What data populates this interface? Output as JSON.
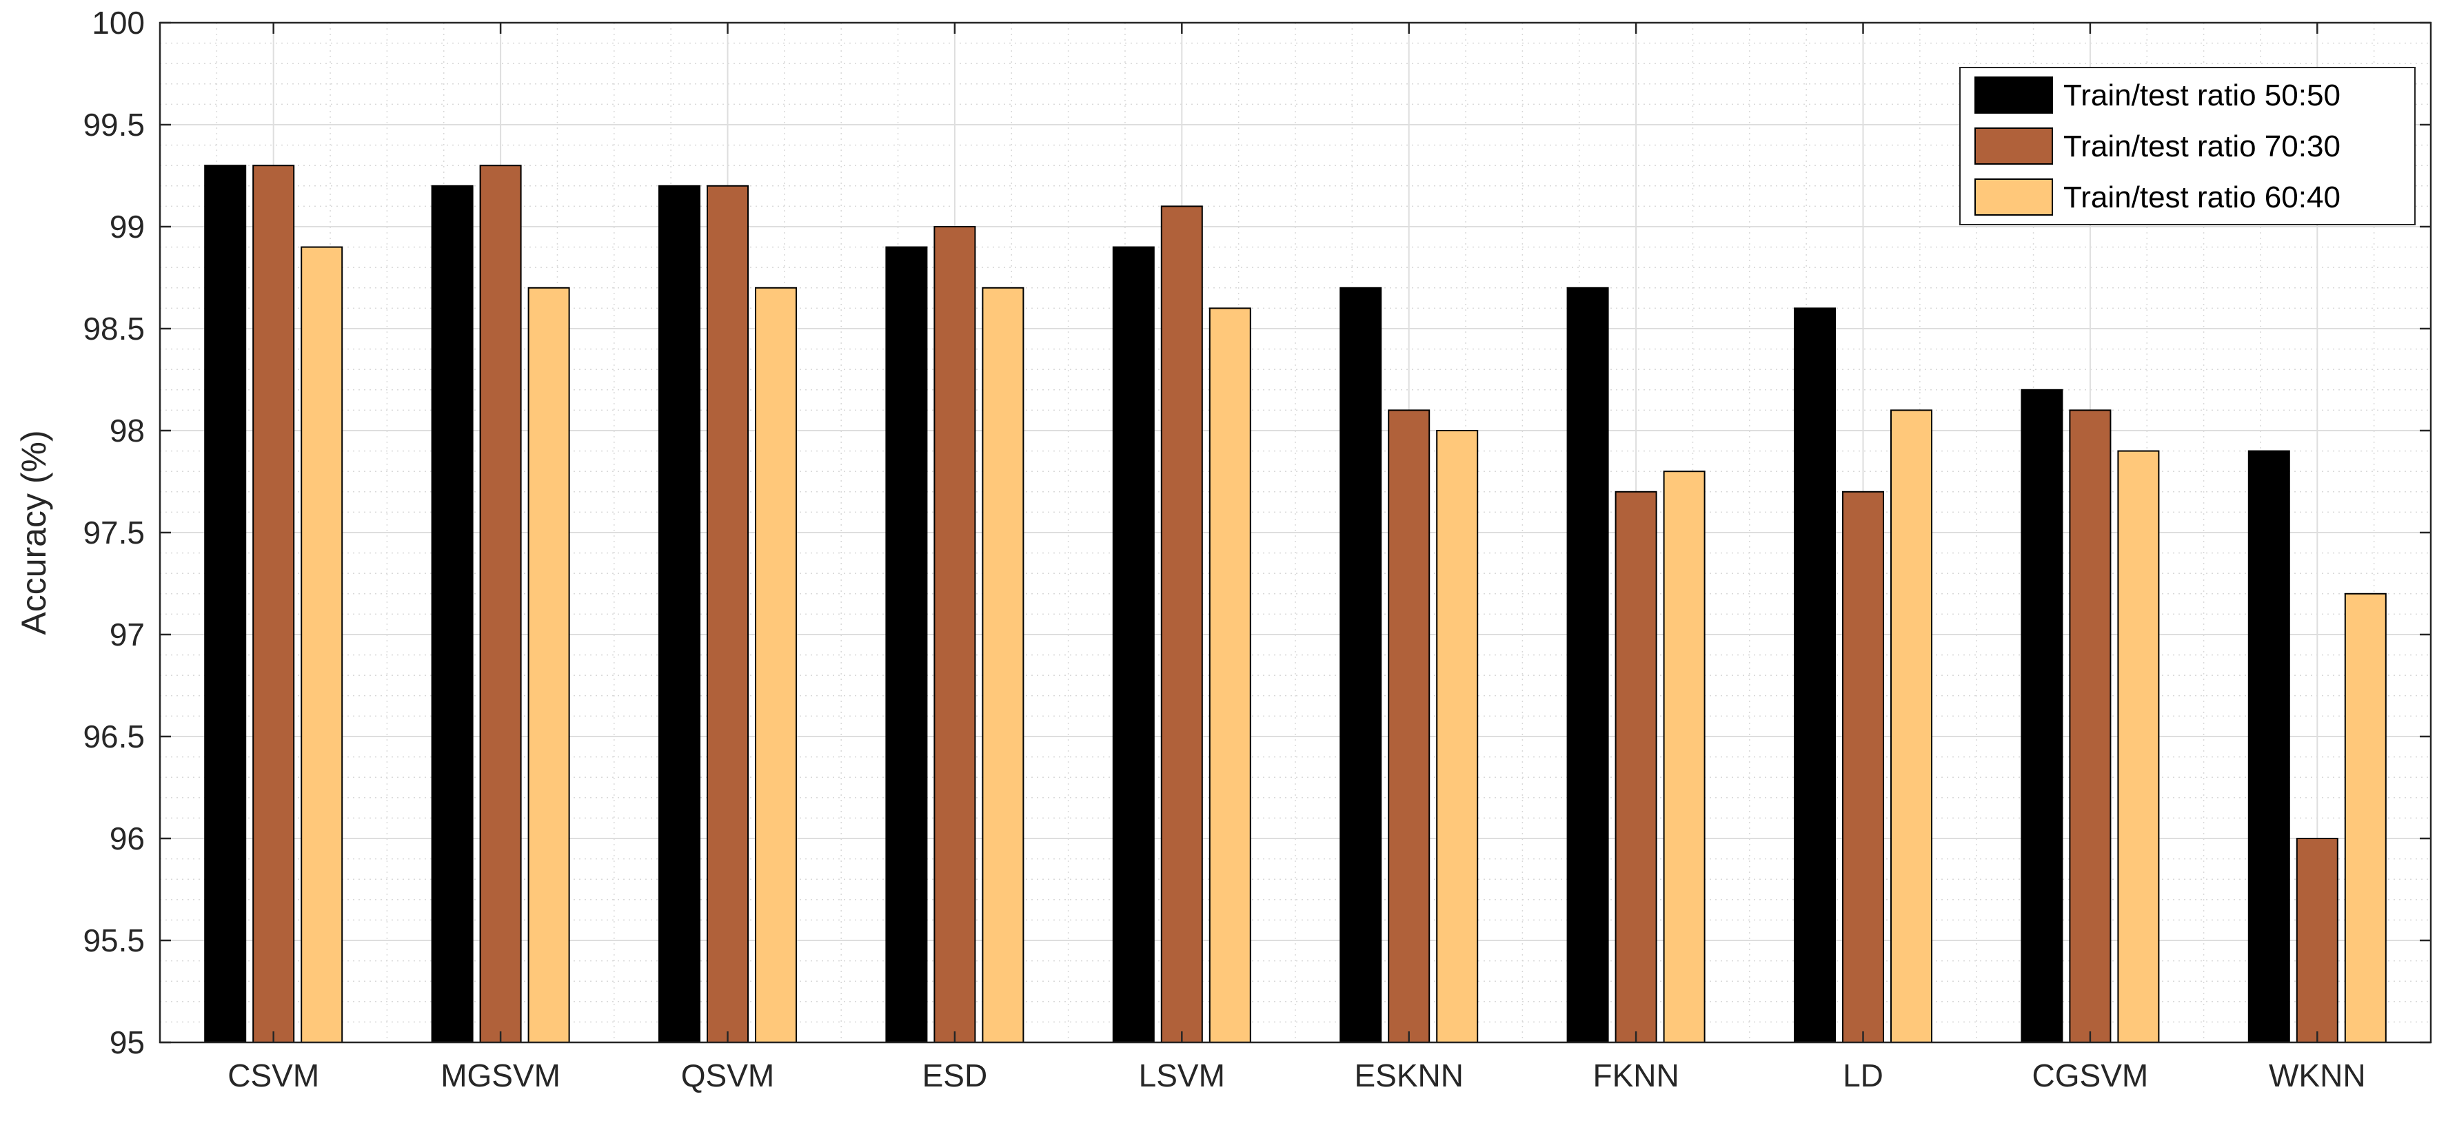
{
  "chart_data": {
    "type": "bar",
    "title": "",
    "xlabel": "",
    "ylabel": "Accuracy (%)",
    "ylim": [
      95,
      100
    ],
    "yticks": [
      "95",
      "95.5",
      "96",
      "96.5",
      "97",
      "97.5",
      "98",
      "98.5",
      "99",
      "99.5",
      "100"
    ],
    "categories": [
      "CSVM",
      "MGSVM",
      "QSVM",
      "ESD",
      "LSVM",
      "ESKNN",
      "FKNN",
      "LD",
      "CGSVM",
      "WKNN"
    ],
    "series": [
      {
        "name": "Train/test ratio 50:50",
        "color": "#000000",
        "values": [
          99.3,
          99.2,
          99.2,
          98.9,
          98.9,
          98.7,
          98.7,
          98.6,
          98.2,
          97.9
        ]
      },
      {
        "name": "Train/test ratio 70:30",
        "color": "#B0613A",
        "values": [
          99.3,
          99.3,
          99.2,
          99.0,
          99.1,
          98.1,
          97.7,
          97.7,
          98.1,
          96.0
        ]
      },
      {
        "name": "Train/test ratio 60:40",
        "color": "#FFC87A",
        "values": [
          98.9,
          98.7,
          98.7,
          98.7,
          98.6,
          98.0,
          97.8,
          98.1,
          97.9,
          97.2
        ]
      }
    ],
    "grid": true,
    "minor_grid": true,
    "legend_position": "top-right"
  }
}
